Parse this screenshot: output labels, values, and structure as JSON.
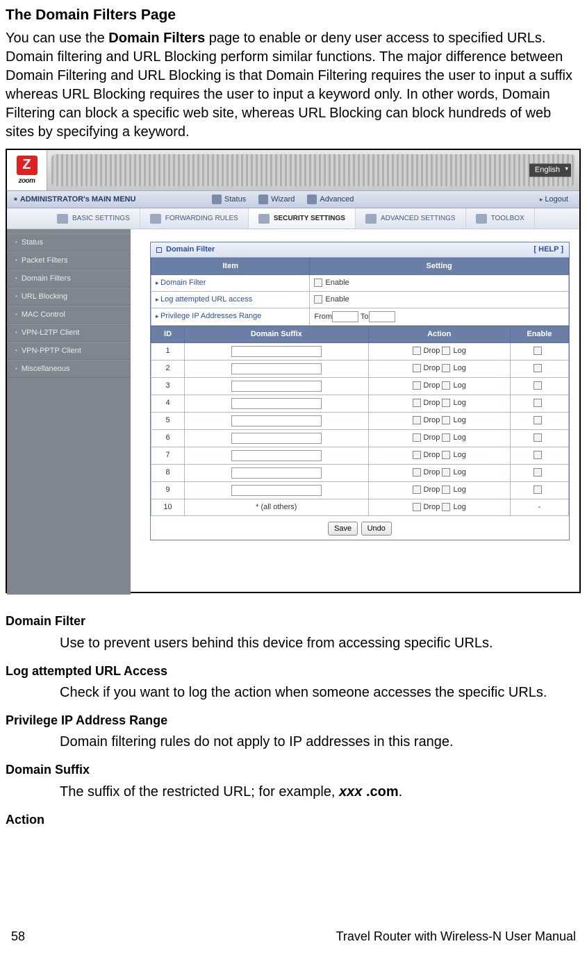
{
  "page": {
    "title": "The Domain Filters Page",
    "intro_pre": "You can use the ",
    "intro_bold": "Domain Filters",
    "intro_post": " page to enable or deny user access to specified URLs. Domain filtering and URL Blocking perform similar functions. The major difference between Domain Filtering and URL Blocking is that Domain Filtering requires the user to input a suffix whereas URL Blocking requires the user to input a keyword only. In other words, Domain Filtering can block a specific web site, whereas URL Blocking can block hundreds of web sites by specifying a keyword."
  },
  "topbar": {
    "logo_text": "zoom",
    "language": "English"
  },
  "mainmenu": {
    "title": "ADMINISTRATOR's MAIN MENU",
    "status": "Status",
    "wizard": "Wizard",
    "advanced": "Advanced",
    "logout": "Logout"
  },
  "tabs": {
    "basic": "BASIC SETTINGS",
    "forwarding": "FORWARDING RULES",
    "security": "SECURITY SETTINGS",
    "adv": "ADVANCED SETTINGS",
    "toolbox": "TOOLBOX"
  },
  "sidebar": {
    "items": [
      "Status",
      "Packet Filters",
      "Domain Filters",
      "URL Blocking",
      "MAC Control",
      "VPN-L2TP Client",
      "VPN-PPTP Client",
      "Miscellaneous"
    ]
  },
  "panel": {
    "title": "Domain Filter",
    "help": "[ HELP ]",
    "col_item": "Item",
    "col_setting": "Setting",
    "row_df": "Domain Filter",
    "row_log": "Log attempted URL access",
    "row_range": "Privilege IP Addresses Range",
    "enable": "Enable",
    "from": "From",
    "to": "To",
    "col_id": "ID",
    "col_suffix": "Domain Suffix",
    "col_action": "Action",
    "col_enable": "Enable",
    "drop": "Drop",
    "log": "Log",
    "all_others": "* (all others)",
    "dash": "-",
    "save": "Save",
    "undo": "Undo",
    "row_ids": [
      "1",
      "2",
      "3",
      "4",
      "5",
      "6",
      "7",
      "8",
      "9",
      "10"
    ]
  },
  "descriptions": {
    "df_h": "Domain Filter",
    "df_b": "Use to prevent users behind this device from accessing specific URLs.",
    "log_h": "Log attempted URL Access",
    "log_b": "Check if you want to log the action when someone accesses the specific URLs.",
    "range_h": "Privilege IP Address Range",
    "range_b": "Domain filtering rules do not apply to IP addresses in this range.",
    "suffix_h": "Domain Suffix",
    "suffix_b_pre": "The suffix of the restricted URL; for example, ",
    "suffix_b_italic": "xxx",
    "suffix_b_bold": " .com",
    "suffix_b_post": ".",
    "action_h": "Action"
  },
  "footer": {
    "page": "58",
    "manual": "Travel Router with Wireless-N User Manual"
  }
}
